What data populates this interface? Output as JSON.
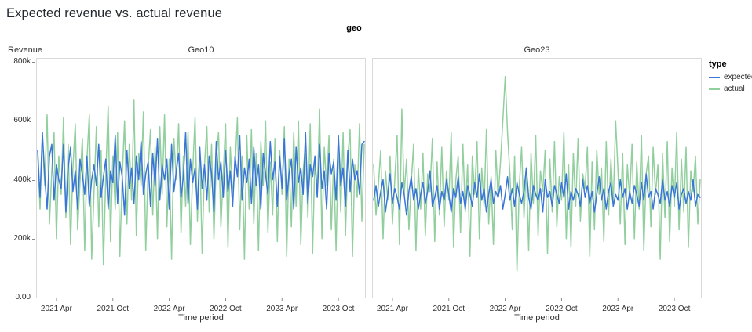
{
  "title": "Expected revenue vs. actual revenue",
  "chart_data": {
    "type": "line",
    "facet_field": "geo",
    "xlabel": "Time period",
    "ylabel": "Revenue",
    "y_unit": "thousands",
    "ylim": [
      0,
      800
    ],
    "grid": false,
    "legend_position": "right",
    "y_ticks": [
      {
        "value": 0,
        "label": "0.00"
      },
      {
        "value": 200,
        "label": "200k"
      },
      {
        "value": 400,
        "label": "400k"
      },
      {
        "value": 600,
        "label": "600k"
      },
      {
        "value": 800,
        "label": "800k"
      }
    ],
    "x_ticks": [
      {
        "index": 8,
        "label": "2021 Apr"
      },
      {
        "index": 32,
        "label": "2021 Oct"
      },
      {
        "index": 56,
        "label": "2022 Apr"
      },
      {
        "index": 80,
        "label": "2022 Oct"
      },
      {
        "index": 104,
        "label": "2023 Apr"
      },
      {
        "index": 128,
        "label": "2023 Oct"
      }
    ],
    "legend": {
      "title": "type",
      "items": [
        {
          "label": "expected",
          "color": "#3a76d8"
        },
        {
          "label": "actual",
          "color": "#92cf9e"
        }
      ]
    },
    "facets": [
      {
        "title": "Geo10",
        "series": [
          {
            "name": "expected",
            "color": "#3a76d8",
            "values": [
              500,
              340,
              560,
              410,
              300,
              480,
              520,
              330,
              450,
              400,
              370,
              520,
              290,
              440,
              510,
              360,
              430,
              300,
              470,
              420,
              350,
              480,
              310,
              400,
              450,
              380,
              520,
              340,
              410,
              470,
              300,
              430,
              390,
              550,
              320,
              460,
              410,
              280,
              500,
              370,
              440,
              320,
              480,
              400,
              530,
              350,
              420,
              460,
              310,
              490,
              380,
              540,
              330,
              450,
              400,
              470,
              300,
              520,
              360,
              430,
              490,
              340,
              410,
              560,
              320,
              470,
              390,
              440,
              300,
              510,
              370,
              450,
              330,
              480,
              420,
              290,
              530,
              400,
              460,
              340,
              500,
              360,
              430,
              310,
              480,
              410,
              550,
              330,
              440,
              390,
              470,
              320,
              510,
              380,
              450,
              300,
              490,
              420,
              350,
              530,
              400,
              460,
              310,
              480,
              370,
              540,
              330,
              420,
              470,
              300,
              510,
              390,
              440,
              350,
              560,
              320,
              450,
              410,
              480,
              340,
              520,
              370,
              430,
              300,
              490,
              420,
              460,
              330,
              550,
              380,
              440,
              310,
              500,
              360,
              470,
              400,
              430,
              350,
              520,
              530
            ]
          },
          {
            "name": "actual",
            "color": "#92cf9e",
            "values": [
              490,
              300,
              550,
              380,
              620,
              250,
              430,
              560,
              200,
              480,
              350,
              610,
              270,
              520,
              180,
              440,
              590,
              230,
              390,
              540,
              160,
              470,
              620,
              130,
              360,
              580,
              240,
              500,
              110,
              420,
              650,
              190,
              480,
              300,
              560,
              140,
              410,
              600,
              250,
              520,
              330,
              670,
              210,
              490,
              380,
              630,
              160,
              440,
              570,
              280,
              510,
              200,
              580,
              350,
              620,
              240,
              470,
              130,
              540,
              400,
              590,
              220,
              480,
              310,
              560,
              180,
              430,
              610,
              260,
              500,
              150,
              450,
              580,
              290,
              520,
              200,
              470,
              560,
              240,
              420,
              590,
              170,
              510,
              350,
              440,
              610,
              230,
              480,
              130,
              550,
              300,
              570,
              250,
              490,
              160,
              530,
              380,
              600,
              220,
              460,
              280,
              540,
              190,
              500,
              350,
              580,
              140,
              470,
              240,
              560,
              310,
              600,
              180,
              430,
              520,
              270,
              590,
              150,
              480,
              350,
              640,
              200,
              510,
              380,
              550,
              230,
              470,
              160,
              530,
              290,
              560,
              210,
              480,
              570,
              140,
              450,
              340,
              590,
              260,
              520
            ]
          }
        ]
      },
      {
        "title": "Geo23",
        "series": [
          {
            "name": "expected",
            "color": "#3a76d8",
            "values": [
              330,
              380,
              310,
              360,
              400,
              290,
              350,
              420,
              320,
              370,
              340,
              300,
              390,
              350,
              280,
              360,
              410,
              330,
              370,
              300,
              350,
              390,
              320,
              360,
              430,
              310,
              340,
              380,
              300,
              360,
              330,
              400,
              350,
              290,
              370,
              340,
              410,
              320,
              360,
              300,
              380,
              350,
              310,
              390,
              340,
              420,
              330,
              370,
              290,
              350,
              400,
              320,
              360,
              340,
              380,
              300,
              350,
              410,
              330,
              370,
              310,
              390,
              350,
              320,
              360,
              440,
              340,
              300,
              380,
              350,
              330,
              370,
              290,
              400,
              340,
              360,
              310,
              380,
              350,
              320,
              390,
              340,
              420,
              300,
              360,
              330,
              370,
              350,
              310,
              400,
              340,
              380,
              320,
              360,
              290,
              350,
              410,
              330,
              370,
              300,
              360,
              390,
              310,
              350,
              330,
              400,
              340,
              370,
              300,
              360,
              320,
              380,
              350,
              310,
              390,
              330,
              420,
              340,
              360,
              300,
              370,
              350,
              320,
              400,
              330,
              360,
              310,
              380,
              340,
              390,
              300,
              350,
              370,
              320,
              360,
              330,
              400,
              310,
              350,
              340
            ]
          },
          {
            "name": "actual",
            "color": "#92cf9e",
            "values": [
              450,
              280,
              380,
              500,
              200,
              430,
              330,
              480,
              250,
              400,
              550,
              180,
              640,
              350,
              470,
              230,
              390,
              520,
              160,
              440,
              300,
              490,
              210,
              420,
              360,
              540,
              190,
              460,
              280,
              510,
              240,
              430,
              330,
              560,
              170,
              400,
              480,
              220,
              520,
              290,
              450,
              140,
              480,
              350,
              530,
              200,
              440,
              310,
              570,
              250,
              410,
              180,
              500,
              340,
              460,
              600,
              750,
              560,
              420,
              230,
              480,
              90,
              380,
              510,
              270,
              440,
              160,
              490,
              320,
              550,
              210,
              430,
              360,
              500,
              150,
              470,
              290,
              530,
              240,
              410,
              330,
              560,
              200,
              450,
              170,
              490,
              310,
              540,
              260,
              420,
              370,
              510,
              140,
              460,
              230,
              500,
              350,
              440,
              190,
              530,
              280,
              470,
              320,
              600,
              430,
              250,
              490,
              180,
              450,
              340,
              520,
              200,
              460,
              300,
              550,
              160,
              420,
              480,
              240,
              510,
              350,
              450,
              130,
              490,
              270,
              530,
              190,
              440,
              310,
              560,
              230,
              470,
              290,
              510,
              170,
              430,
              360,
              480,
              250,
              400
            ]
          }
        ]
      }
    ]
  }
}
